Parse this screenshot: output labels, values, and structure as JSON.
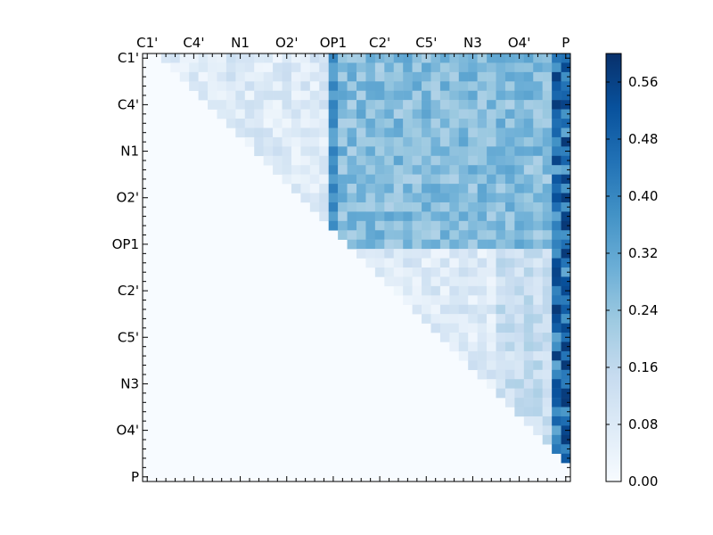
{
  "chart_data": {
    "type": "heatmap",
    "title": "",
    "xlabel": "",
    "ylabel": "",
    "size": 46,
    "row_labels": [
      "C1'",
      "C4'",
      "N1",
      "O2'",
      "OP1",
      "C2'",
      "C5'",
      "N3",
      "O4'",
      "P"
    ],
    "col_labels": [
      "C1'",
      "C4'",
      "N1",
      "O2'",
      "OP1",
      "C2'",
      "C5'",
      "N3",
      "O4'",
      "P"
    ],
    "label_every": 5,
    "x_tick_position": "top",
    "colormap": "Blues",
    "colors": {
      "low": "#f7fbff",
      "high": "#08306b"
    },
    "colorbar": {
      "min": 0.0,
      "max": 0.6,
      "ticks": [
        "0.00",
        "0.08",
        "0.16",
        "0.24",
        "0.32",
        "0.40",
        "0.48",
        "0.56"
      ]
    },
    "triangle": "upper",
    "diagonal_offset": 2,
    "value_estimates": {
      "upper_block_typical": 0.25,
      "lower_block_typical": 0.1,
      "last_column_peak": 0.59,
      "below_diagonal": 0.0
    }
  }
}
